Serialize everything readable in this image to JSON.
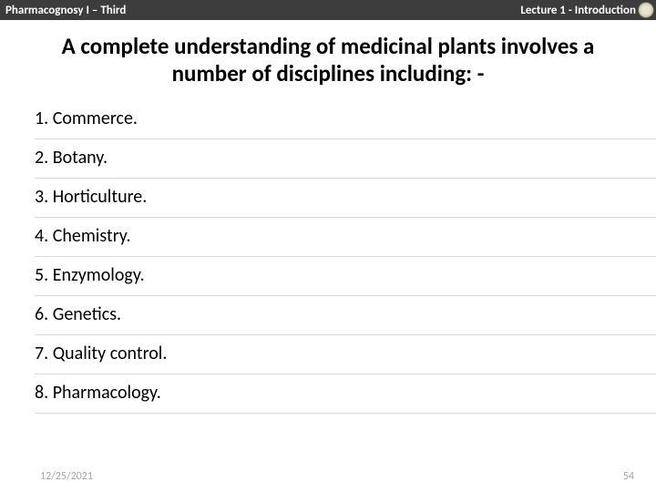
{
  "header": {
    "left": "Pharmacognosy I – Third",
    "right": "Lecture 1 - Introduction"
  },
  "title": "A complete understanding of medicinal plants involves a number of disciplines including: -",
  "list": {
    "items": [
      "1. Commerce.",
      "2. Botany.",
      "3. Horticulture.",
      "4. Chemistry.",
      "5. Enzymology.",
      "6. Genetics.",
      "7. Quality control.",
      "8. Pharmacology."
    ]
  },
  "footer": {
    "date": "12/25/2021",
    "page": "54"
  },
  "style": {
    "header_bg": "#3c3c3c",
    "header_fg": "#ffffff",
    "title_fontsize": 25,
    "item_fontsize": 20,
    "divider_color": "#d9d9d9",
    "footer_color": "#a6a6a6",
    "background": "#ffffff"
  }
}
